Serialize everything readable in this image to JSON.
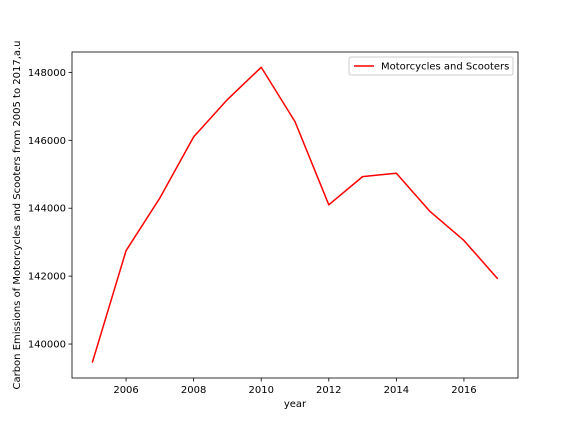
{
  "chart_data": {
    "type": "line",
    "title": "",
    "xlabel": "year",
    "ylabel": "Carbon Emissions of Motorcycles and Scooters from 2005 to 2017,a.u",
    "x": [
      2005,
      2006,
      2007,
      2008,
      2009,
      2010,
      2011,
      2012,
      2013,
      2014,
      2015,
      2016,
      2017
    ],
    "series": [
      {
        "name": "Motorcycles and Scooters",
        "color": "#ff0000",
        "values": [
          139450,
          142750,
          144300,
          146100,
          147200,
          148150,
          146550,
          144100,
          144930,
          145030,
          143900,
          143050,
          141920
        ]
      }
    ],
    "xlim": [
      2004.4,
      2017.6
    ],
    "ylim": [
      139000,
      148600
    ],
    "xticks": [
      2006,
      2008,
      2010,
      2012,
      2014,
      2016
    ],
    "xtick_labels": [
      "2006",
      "2008",
      "2010",
      "2012",
      "2014",
      "2016"
    ],
    "yticks": [
      140000,
      142000,
      144000,
      146000,
      148000
    ],
    "ytick_labels": [
      "140000",
      "142000",
      "144000",
      "146000",
      "148000"
    ],
    "grid": false,
    "legend": "top-right"
  }
}
